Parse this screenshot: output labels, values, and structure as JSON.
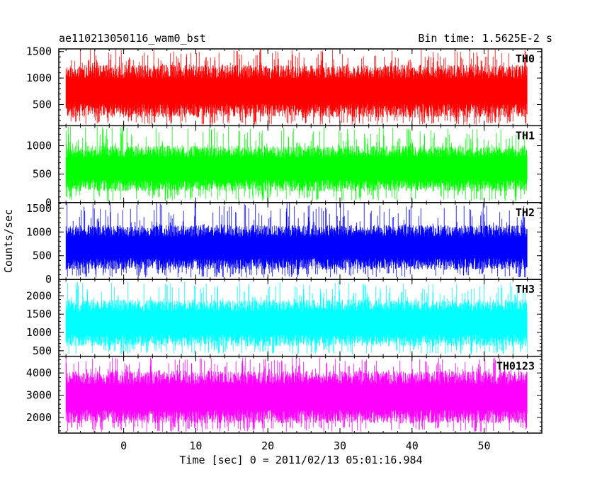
{
  "chart_data": {
    "type": "line",
    "title": "ae110213050116_wam0_bst",
    "title_right": "Bin time: 1.5625E-2 s",
    "xlabel": "Time [sec] 0 = 2011/02/13 05:01:16.984",
    "ylabel": "Counts/sec",
    "xlim": [
      -9,
      58
    ],
    "x_ticks": [
      0,
      10,
      20,
      30,
      40,
      50
    ],
    "data_x_range": [
      -8,
      56
    ],
    "panels": [
      {
        "name": "TH0",
        "color": "#ff0000",
        "ylim": [
          100,
          1550
        ],
        "y_ticks": [
          500,
          1000,
          1500
        ],
        "typical_range": [
          200,
          1250
        ],
        "range_min": 120,
        "range_max": 1550
      },
      {
        "name": "TH1",
        "color": "#00ff00",
        "ylim": [
          0,
          1350
        ],
        "y_ticks": [
          0,
          500,
          1000
        ],
        "typical_range": [
          150,
          1000
        ],
        "range_min": 20,
        "range_max": 1350
      },
      {
        "name": "TH2",
        "color": "#0000ff",
        "ylim": [
          0,
          1620
        ],
        "y_ticks": [
          0,
          500,
          1000,
          1500
        ],
        "typical_range": [
          150,
          1150
        ],
        "range_min": 40,
        "range_max": 1620
      },
      {
        "name": "TH3",
        "color": "#00ffff",
        "ylim": [
          350,
          2450
        ],
        "y_ticks": [
          500,
          1000,
          1500,
          2000
        ],
        "typical_range": [
          550,
          1900
        ],
        "range_min": 400,
        "range_max": 2400
      },
      {
        "name": "TH0123",
        "color": "#ff00ff",
        "ylim": [
          1300,
          4750
        ],
        "y_ticks": [
          2000,
          3000,
          4000
        ],
        "typical_range": [
          1600,
          4100
        ],
        "range_min": 1350,
        "range_max": 4700
      }
    ]
  }
}
